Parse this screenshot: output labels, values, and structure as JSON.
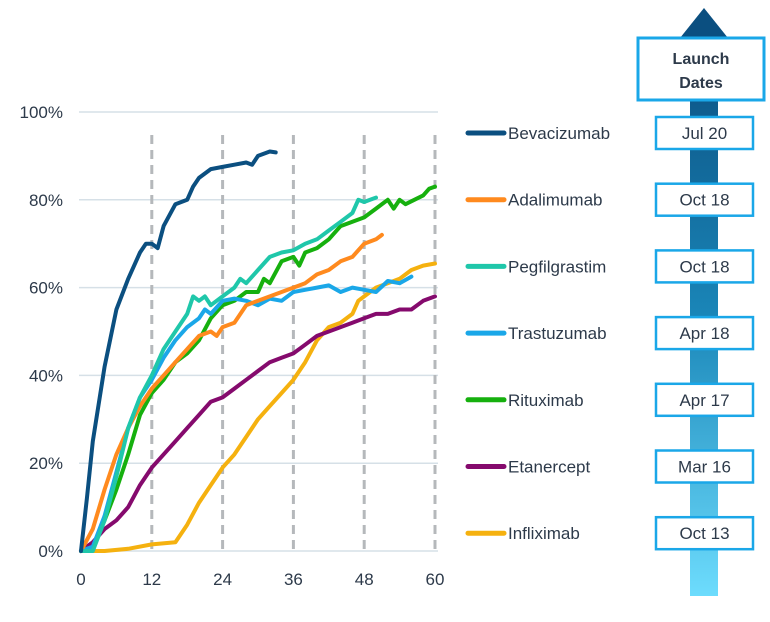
{
  "chart_data": {
    "type": "line",
    "title": "",
    "xlabel": "",
    "ylabel": "",
    "xlim": [
      0,
      60
    ],
    "ylim": [
      0,
      100
    ],
    "x_ticks": [
      "0",
      "12",
      "24",
      "36",
      "48",
      "60"
    ],
    "x_tick_values": [
      0,
      12,
      24,
      36,
      48,
      60
    ],
    "y_ticks": [
      "0%",
      "20%",
      "40%",
      "60%",
      "80%",
      "100%"
    ],
    "y_tick_values": [
      0,
      20,
      40,
      60,
      80,
      100
    ],
    "grid": "horizontal solid, vertical dashed at x ticks",
    "legend_placement": "right",
    "series": [
      {
        "name": "Bevacizumab",
        "color": "#0b4f80",
        "launch": "Jul 20",
        "x": [
          0,
          1,
          2,
          4,
          6,
          8,
          10,
          11,
          12,
          13,
          14,
          16,
          18,
          19,
          20,
          22,
          24,
          26,
          28,
          29,
          30,
          32,
          33
        ],
        "y": [
          0,
          12,
          25,
          42,
          55,
          62,
          68,
          70,
          70,
          69,
          74,
          79,
          80,
          83,
          85,
          87,
          87.5,
          88,
          88.5,
          88,
          90,
          91,
          90.8
        ]
      },
      {
        "name": "Adalimumab",
        "color": "#ff8a1e",
        "launch": "Oct 18",
        "x": [
          0,
          2,
          4,
          6,
          8,
          10,
          12,
          14,
          16,
          18,
          20,
          22,
          23,
          24,
          26,
          28,
          30,
          32,
          34,
          36,
          38,
          40,
          42,
          44,
          46,
          48,
          50,
          51
        ],
        "y": [
          0,
          5,
          14,
          22,
          28,
          33,
          37,
          40,
          43,
          46,
          49,
          50,
          49,
          51,
          52,
          56,
          57,
          58,
          59,
          60,
          61,
          63,
          64,
          66,
          67,
          70,
          71,
          72
        ]
      },
      {
        "name": "Pegfilgrastim",
        "color": "#1fc7aa",
        "launch": "Oct 18",
        "x": [
          0,
          2,
          4,
          6,
          8,
          10,
          12,
          14,
          16,
          18,
          19,
          20,
          21,
          22,
          24,
          26,
          27,
          28,
          30,
          32,
          34,
          36,
          38,
          40,
          42,
          44,
          46,
          47,
          48,
          49,
          50
        ],
        "y": [
          0,
          0,
          7,
          17,
          28,
          35,
          40,
          46,
          50,
          54,
          58,
          57,
          58,
          56,
          58,
          60,
          62,
          61,
          64,
          67,
          68,
          68.5,
          70,
          71,
          73,
          75,
          77,
          80,
          79.5,
          80,
          80.5
        ]
      },
      {
        "name": "Trastuzumab",
        "color": "#1aa7e8",
        "launch": "Apr 18",
        "x": [
          0,
          2,
          4,
          6,
          8,
          10,
          12,
          14,
          16,
          18,
          20,
          21,
          22,
          24,
          26,
          28,
          30,
          32,
          34,
          36,
          38,
          40,
          42,
          44,
          46,
          48,
          50,
          52,
          54,
          56
        ],
        "y": [
          0,
          1,
          8,
          18,
          28,
          35,
          39,
          44,
          48,
          51,
          53,
          55,
          54,
          57,
          57.5,
          57,
          56,
          57.5,
          57,
          59,
          59.5,
          60,
          60.5,
          59,
          60,
          59.5,
          59,
          61.5,
          61,
          62.5
        ]
      },
      {
        "name": "Rituximab",
        "color": "#16b00e",
        "launch": "Apr 17",
        "x": [
          0,
          2,
          4,
          6,
          8,
          10,
          12,
          14,
          16,
          18,
          20,
          22,
          24,
          26,
          28,
          30,
          31,
          32,
          34,
          36,
          37,
          38,
          40,
          42,
          44,
          46,
          48,
          50,
          52,
          53,
          54,
          55,
          58,
          59,
          60
        ],
        "y": [
          0,
          1,
          7,
          14,
          22,
          31,
          36,
          39,
          43,
          45,
          48,
          53,
          56,
          57,
          59,
          59,
          62,
          61,
          66,
          67,
          65,
          68,
          69,
          71,
          74,
          75,
          76,
          78,
          80,
          78,
          80,
          79,
          81,
          82.5,
          83
        ]
      },
      {
        "name": "Etanercept",
        "color": "#850a6d",
        "launch": "Mar 16",
        "x": [
          0,
          2,
          4,
          6,
          8,
          10,
          12,
          14,
          16,
          18,
          20,
          22,
          24,
          26,
          28,
          30,
          32,
          34,
          36,
          38,
          40,
          42,
          44,
          46,
          48,
          50,
          52,
          54,
          56,
          58,
          60
        ],
        "y": [
          0,
          2,
          5,
          7,
          10,
          15,
          19,
          22,
          25,
          28,
          31,
          34,
          35,
          37,
          39,
          41,
          43,
          44,
          45,
          47,
          49,
          50,
          51,
          52,
          53,
          54,
          54,
          55,
          55,
          57,
          58
        ]
      },
      {
        "name": "Infliximab",
        "color": "#f5b10f",
        "launch": "Oct 13",
        "x": [
          0,
          4,
          8,
          12,
          16,
          18,
          20,
          22,
          24,
          26,
          28,
          30,
          32,
          34,
          36,
          38,
          40,
          42,
          44,
          46,
          47,
          48,
          50,
          52,
          54,
          56,
          58,
          60
        ],
        "y": [
          0,
          0,
          0.5,
          1.5,
          2,
          6,
          11,
          15,
          19,
          22,
          26,
          30,
          33,
          36,
          39,
          43,
          48,
          51,
          52,
          54,
          57,
          58,
          60,
          61,
          62,
          64,
          65,
          65.5
        ]
      }
    ]
  },
  "launch_panel": {
    "title_line1": "Launch",
    "title_line2": "Dates"
  }
}
